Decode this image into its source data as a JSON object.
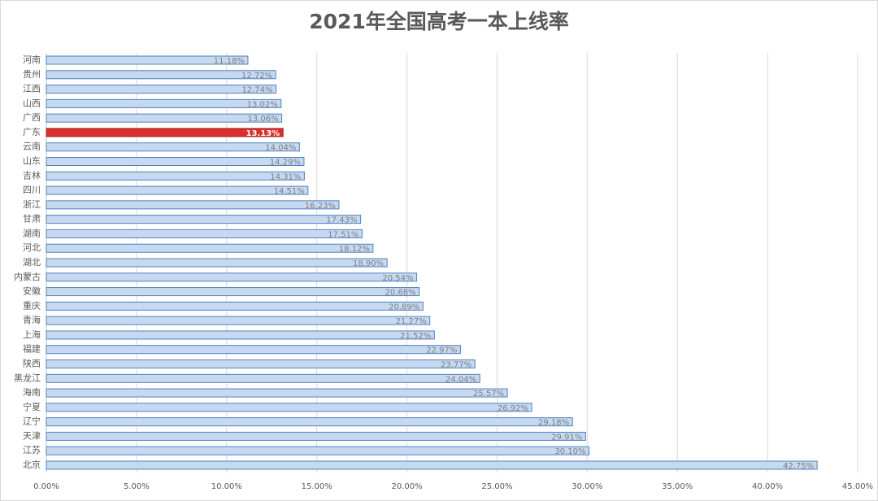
{
  "chart_data": {
    "type": "bar",
    "orientation": "horizontal",
    "title": "2021年全国高考一本上线率",
    "categories": [
      "河南",
      "贵州",
      "江西",
      "山西",
      "广西",
      "广东",
      "云南",
      "山东",
      "吉林",
      "四川",
      "浙江",
      "甘肃",
      "湖南",
      "河北",
      "湖北",
      "内蒙古",
      "安徽",
      "重庆",
      "青海",
      "上海",
      "福建",
      "陕西",
      "黑龙江",
      "海南",
      "宁夏",
      "辽宁",
      "天津",
      "江苏",
      "北京"
    ],
    "values": [
      11.18,
      12.72,
      12.74,
      13.02,
      13.06,
      13.13,
      14.04,
      14.29,
      14.31,
      14.51,
      16.23,
      17.43,
      17.51,
      18.12,
      18.9,
      20.54,
      20.68,
      20.89,
      21.27,
      21.52,
      22.97,
      23.77,
      24.04,
      25.57,
      26.92,
      29.18,
      29.91,
      30.1,
      42.75
    ],
    "value_labels": [
      "11.18%",
      "12.72%",
      "12.74%",
      "13.02%",
      "13.06%",
      "13.13%",
      "14.04%",
      "14.29%",
      "14.31%",
      "14.51%",
      "16.23%",
      "17.43%",
      "17.51%",
      "18.12%",
      "18.90%",
      "20.54%",
      "20.68%",
      "20.89%",
      "21.27%",
      "21.52%",
      "22.97%",
      "23.77%",
      "24.04%",
      "25.57%",
      "26.92%",
      "29.18%",
      "29.91%",
      "30.10%",
      "42.75%"
    ],
    "colors": [
      "#c6d9f1",
      "#c6d9f1",
      "#c6d9f1",
      "#c6d9f1",
      "#c6d9f1",
      "#d9302b",
      "#c6d9f1",
      "#c6d9f1",
      "#c6d9f1",
      "#c6d9f1",
      "#c6d9f1",
      "#c6d9f1",
      "#c6d9f1",
      "#c6d9f1",
      "#c6d9f1",
      "#c6d9f1",
      "#c6d9f1",
      "#c6d9f1",
      "#c6d9f1",
      "#c6d9f1",
      "#c6d9f1",
      "#c6d9f1",
      "#c6d9f1",
      "#c6d9f1",
      "#c6d9f1",
      "#c6d9f1",
      "#c6d9f1",
      "#c6d9f1",
      "#c6d9f1"
    ],
    "xlim": [
      0,
      45
    ],
    "xticks": [
      {
        "value": 0,
        "label": "0.00%"
      },
      {
        "value": 5,
        "label": "5.00%"
      },
      {
        "value": 10,
        "label": "10.00%"
      },
      {
        "value": 15,
        "label": "15.00%"
      },
      {
        "value": 20,
        "label": "20.00%"
      },
      {
        "value": 25,
        "label": "25.00%"
      },
      {
        "value": 30,
        "label": "30.00%"
      },
      {
        "value": 35,
        "label": "35.00%"
      },
      {
        "value": 40,
        "label": "40.00%"
      },
      {
        "value": 45,
        "label": "45.00%"
      }
    ],
    "grid": true
  }
}
